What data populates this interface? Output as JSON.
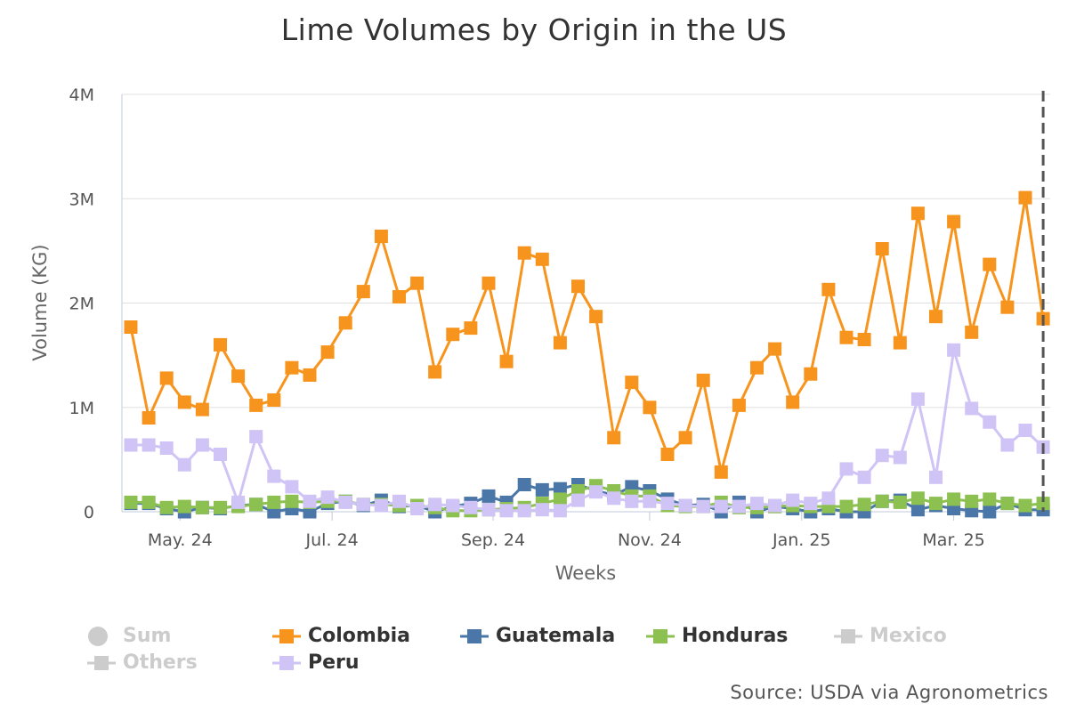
{
  "title": "Lime Volumes by Origin in the US",
  "source": "Source: USDA via Agronometrics",
  "chart_data": {
    "type": "line",
    "title": "Lime Volumes by Origin in the US",
    "xlabel": "Weeks",
    "ylabel": "Volume (KG)",
    "ylim": [
      0,
      4000000
    ],
    "yticks": [
      {
        "value": 0,
        "label": "0"
      },
      {
        "value": 1000000,
        "label": "1M"
      },
      {
        "value": 2000000,
        "label": "2M"
      },
      {
        "value": 3000000,
        "label": "3M"
      },
      {
        "value": 4000000,
        "label": "4M"
      }
    ],
    "xticks": [
      {
        "week": 2.75,
        "label": "May. 24"
      },
      {
        "week": 11.25,
        "label": "Jul. 24"
      },
      {
        "week": 20.25,
        "label": "Sep. 24"
      },
      {
        "week": 29,
        "label": "Nov. 24"
      },
      {
        "week": 37.5,
        "label": "Jan. 25"
      },
      {
        "week": 46,
        "label": "Mar. 25"
      }
    ],
    "week_count": 52,
    "marker_week": 51,
    "grid": true,
    "legend_position": "bottom",
    "series": [
      {
        "name": "Colombia",
        "color": "#f7941d",
        "visible": true,
        "values": [
          1770000,
          900000,
          1280000,
          1050000,
          980000,
          1600000,
          1300000,
          1020000,
          1070000,
          1380000,
          1310000,
          1530000,
          1810000,
          2110000,
          2640000,
          2060000,
          2190000,
          1340000,
          1700000,
          1760000,
          2190000,
          1440000,
          2480000,
          2420000,
          1620000,
          2160000,
          1870000,
          710000,
          1240000,
          1000000,
          550000,
          710000,
          1260000,
          380000,
          1020000,
          1380000,
          1560000,
          1050000,
          1320000,
          2130000,
          1670000,
          1650000,
          2520000,
          1620000,
          2860000,
          1870000,
          2780000,
          1720000,
          2370000,
          1960000,
          3010000,
          1850000
        ]
      },
      {
        "name": "Guatemala",
        "color": "#4a76a8",
        "visible": true,
        "values": [
          80000,
          80000,
          30000,
          0,
          40000,
          30000,
          60000,
          70000,
          0,
          30000,
          0,
          80000,
          100000,
          60000,
          110000,
          50000,
          60000,
          0,
          50000,
          80000,
          150000,
          90000,
          260000,
          210000,
          220000,
          260000,
          200000,
          160000,
          240000,
          200000,
          120000,
          60000,
          70000,
          0,
          90000,
          0,
          50000,
          30000,
          0,
          30000,
          0,
          0,
          100000,
          110000,
          20000,
          60000,
          30000,
          10000,
          0,
          80000,
          20000,
          20000
        ]
      },
      {
        "name": "Honduras",
        "color": "#8cc152",
        "visible": true,
        "values": [
          90000,
          90000,
          40000,
          50000,
          40000,
          40000,
          50000,
          70000,
          90000,
          100000,
          90000,
          100000,
          100000,
          70000,
          70000,
          60000,
          60000,
          40000,
          10000,
          10000,
          20000,
          30000,
          40000,
          80000,
          120000,
          200000,
          250000,
          200000,
          150000,
          150000,
          60000,
          50000,
          50000,
          90000,
          40000,
          40000,
          50000,
          60000,
          50000,
          50000,
          50000,
          70000,
          100000,
          90000,
          130000,
          80000,
          120000,
          100000,
          120000,
          80000,
          60000,
          80000
        ]
      },
      {
        "name": "Peru",
        "color": "#cfc4f5",
        "visible": true,
        "values": [
          640000,
          640000,
          610000,
          450000,
          640000,
          550000,
          90000,
          720000,
          340000,
          240000,
          100000,
          140000,
          90000,
          70000,
          60000,
          100000,
          30000,
          70000,
          60000,
          40000,
          20000,
          10000,
          10000,
          20000,
          10000,
          110000,
          190000,
          130000,
          100000,
          100000,
          80000,
          60000,
          50000,
          50000,
          50000,
          80000,
          60000,
          110000,
          80000,
          130000,
          410000,
          330000,
          540000,
          520000,
          1080000,
          330000,
          1550000,
          990000,
          860000,
          640000,
          780000,
          620000
        ]
      }
    ],
    "legend": [
      {
        "name": "Sum",
        "color": "#cccccc",
        "active": false,
        "symbol": "circle"
      },
      {
        "name": "Colombia",
        "color": "#f7941d",
        "active": true,
        "symbol": "square"
      },
      {
        "name": "Guatemala",
        "color": "#4a76a8",
        "active": true,
        "symbol": "square"
      },
      {
        "name": "Honduras",
        "color": "#8cc152",
        "active": true,
        "symbol": "square"
      },
      {
        "name": "Mexico",
        "color": "#cccccc",
        "active": false,
        "symbol": "square"
      },
      {
        "name": "Others",
        "color": "#cccccc",
        "active": false,
        "symbol": "square"
      },
      {
        "name": "Peru",
        "color": "#cfc4f5",
        "active": true,
        "symbol": "square"
      }
    ]
  }
}
